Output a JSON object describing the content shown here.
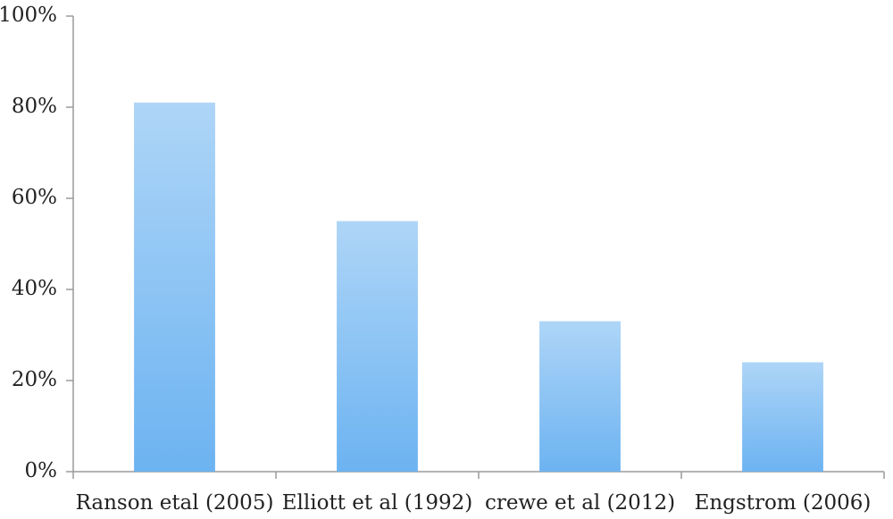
{
  "chart_data": {
    "type": "bar",
    "categories": [
      "Ranson etal (2005)",
      "Elliott et al (1992)",
      "crewe et al (2012)",
      "Engstrom (2006)"
    ],
    "values": [
      81,
      55,
      33,
      24
    ],
    "color": "#6cb3f1",
    "ylim": [
      0,
      100
    ],
    "yticks": [
      {
        "value": 0,
        "label": "0%"
      },
      {
        "value": 20,
        "label": "20%"
      },
      {
        "value": 40,
        "label": "40%"
      },
      {
        "value": 60,
        "label": "60%"
      },
      {
        "value": 80,
        "label": "80%"
      },
      {
        "value": 100,
        "label": "100%"
      }
    ],
    "grid": false
  }
}
